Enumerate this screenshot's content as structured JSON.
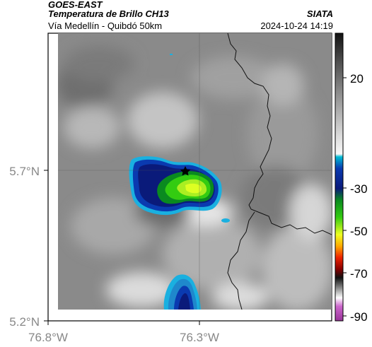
{
  "header": {
    "satellite": "GOES-EAST",
    "product": "Temperatura de Brillo CH13",
    "org": "SIATA",
    "region": "Vía Medellín - Quibdó 50km",
    "datetime": "2024-10-24 14:19"
  },
  "map": {
    "lat_labels": [
      {
        "text": "5.7°N",
        "value": 5.7
      },
      {
        "text": "5.2°N",
        "value": 5.2
      }
    ],
    "lon_labels": [
      {
        "text": "76.8°W",
        "value": -76.8
      },
      {
        "text": "76.3°W",
        "value": -76.3
      }
    ],
    "colors": {
      "cloud_blue": "#0a1a9a",
      "cloud_cyan": "#1ab0e0",
      "cloud_green": "#33cc11",
      "cloud_yellow": "#ddff22",
      "background_gray": "#8a8a8a"
    }
  },
  "colorbar": {
    "ticks": [
      {
        "text": "20",
        "value": 20
      },
      {
        "text": "-30",
        "value": -30
      },
      {
        "text": "-50",
        "value": -50
      },
      {
        "text": "-70",
        "value": -70
      },
      {
        "text": "-90",
        "value": -90
      }
    ]
  }
}
